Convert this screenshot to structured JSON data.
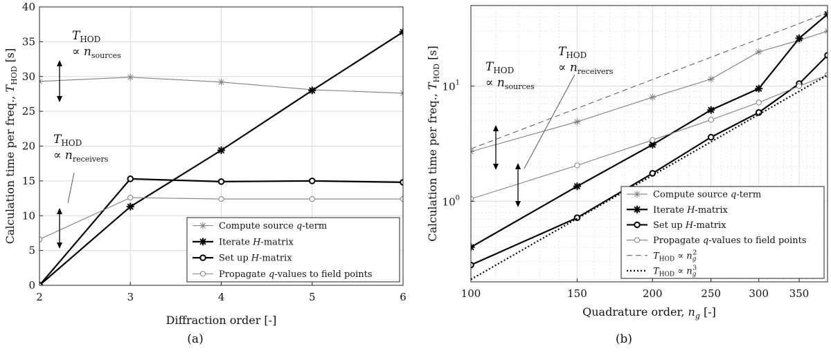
{
  "figure": {
    "colors": {
      "axis": "#222222",
      "grid": "#d9d9d9",
      "gray_series": "#7f7f7f",
      "black_series": "#000000"
    }
  },
  "chart_data": [
    {
      "type": "line",
      "caption": "(a)",
      "xlabel": "Diffraction order [-]",
      "ylabel": "Calculation time per freq.,",
      "ylabel_math": {
        "base": "T",
        "sub": "HOD",
        "suffix": " [s]"
      },
      "xlim": [
        2,
        6
      ],
      "ylim": [
        0,
        40
      ],
      "xticks": [
        2,
        3,
        4,
        5,
        6
      ],
      "yticks": [
        0,
        5,
        10,
        15,
        20,
        25,
        30,
        35,
        40
      ],
      "yscale": "linear",
      "grid": true,
      "legend_position": "bottom-right",
      "series": [
        {
          "name": "Compute source q-term",
          "legend": {
            "pre": "Compute source ",
            "italic": "q",
            "post": "-term"
          },
          "color": "#7f7f7f",
          "width": 1.1,
          "marker": "asterisk",
          "x": [
            2,
            3,
            4,
            5,
            6
          ],
          "y": [
            29.3,
            29.9,
            29.2,
            28.1,
            27.6
          ]
        },
        {
          "name": "Iterate H-matrix",
          "legend": {
            "pre": "Iterate ",
            "italic": "H",
            "post": "-matrix"
          },
          "color": "#000000",
          "width": 2.2,
          "marker": "asterisk",
          "x": [
            2,
            3,
            4,
            5,
            6
          ],
          "y": [
            0,
            11.3,
            19.4,
            28.0,
            36.4
          ]
        },
        {
          "name": "Set up H-matrix",
          "legend": {
            "pre": "Set up ",
            "italic": "H",
            "post": "-matrix"
          },
          "color": "#000000",
          "width": 2.2,
          "marker": "circle",
          "x": [
            2,
            3,
            4,
            5,
            6
          ],
          "y": [
            0,
            15.3,
            14.9,
            15.0,
            14.8
          ]
        },
        {
          "name": "Propagate q-values to field points",
          "legend": {
            "pre": "Propagate ",
            "italic": "q",
            "post": "-values to field points"
          },
          "color": "#7f7f7f",
          "width": 1.1,
          "marker": "circle",
          "x": [
            2,
            3,
            4,
            5,
            6
          ],
          "y": [
            6.6,
            12.6,
            12.4,
            12.4,
            12.4
          ]
        }
      ],
      "annotations": [
        {
          "base": "T",
          "sub": "HOD",
          "relation": "∝ n",
          "rel_sub": "sources"
        },
        {
          "base": "T",
          "sub": "HOD",
          "relation": "∝ n",
          "rel_sub": "receivers"
        }
      ]
    },
    {
      "type": "line",
      "caption": "(b)",
      "xlabel": "Quadrature order,",
      "xlabel_math": {
        "base": "n",
        "sub": "g",
        "suffix": " [-]"
      },
      "ylabel": "Calculation time per freq.,",
      "ylabel_math": {
        "base": "T",
        "sub": "HOD",
        "suffix": " [s]"
      },
      "xscale": "log",
      "yscale": "log",
      "xlim": [
        100,
        390
      ],
      "ylim": [
        0.2,
        50
      ],
      "xticks": [
        100,
        150,
        200,
        250,
        300,
        350
      ],
      "yticks": [
        1,
        10
      ],
      "ytick_labels": [
        {
          "base": "10",
          "exp": "0"
        },
        {
          "base": "10",
          "exp": "1"
        }
      ],
      "grid": true,
      "legend_position": "bottom-right",
      "series": [
        {
          "name": "Compute source q-term",
          "legend": {
            "pre": "Compute source ",
            "italic": "q",
            "post": "-term"
          },
          "color": "#7f7f7f",
          "width": 1.1,
          "marker": "asterisk",
          "dash": "",
          "x": [
            100,
            150,
            200,
            250,
            300,
            350,
            390
          ],
          "y": [
            2.7,
            4.9,
            8.0,
            11.5,
            19.8,
            25.0,
            30.0
          ]
        },
        {
          "name": "Iterate H-matrix",
          "legend": {
            "pre": "Iterate ",
            "italic": "H",
            "post": "-matrix"
          },
          "color": "#000000",
          "width": 2.2,
          "marker": "asterisk",
          "dash": "",
          "x": [
            100,
            150,
            200,
            250,
            300,
            350,
            390
          ],
          "y": [
            0.4,
            1.35,
            3.1,
            6.2,
            9.5,
            26.0,
            42.0
          ]
        },
        {
          "name": "Set up H-matrix",
          "legend": {
            "pre": "Set up ",
            "italic": "H",
            "post": "-matrix"
          },
          "color": "#000000",
          "width": 2.2,
          "marker": "circle",
          "dash": "",
          "x": [
            100,
            150,
            200,
            250,
            300,
            350,
            390
          ],
          "y": [
            0.28,
            0.72,
            1.75,
            3.6,
            5.9,
            10.5,
            18.5
          ]
        },
        {
          "name": "Propagate q-values to field points",
          "legend": {
            "pre": "Propagate ",
            "italic": "q",
            "post": "-values to field points"
          },
          "color": "#7f7f7f",
          "width": 1.1,
          "marker": "circle",
          "dash": "",
          "x": [
            100,
            150,
            200,
            250,
            300,
            350,
            390
          ],
          "y": [
            1.05,
            2.05,
            3.4,
            5.1,
            7.2,
            10.0,
            12.5
          ]
        },
        {
          "name": "T_HOD ∝ n_g^2",
          "legend": {
            "base": "T",
            "sub": "HOD",
            "rel": " ∝ n",
            "rsub": "g",
            "exp": "2"
          },
          "color": "#555555",
          "width": 1.0,
          "marker": "none",
          "dash": "8 5",
          "x": [
            100,
            390
          ],
          "y": [
            2.85,
            43.3
          ]
        },
        {
          "name": "T_HOD ∝ n_g^3",
          "legend": {
            "base": "T",
            "sub": "HOD",
            "rel": " ∝ n",
            "rsub": "g",
            "exp": "3"
          },
          "color": "#000000",
          "width": 2.2,
          "marker": "none",
          "dash": "2 3",
          "x": [
            100,
            390
          ],
          "y": [
            0.21,
            12.45
          ]
        }
      ],
      "annotations": [
        {
          "base": "T",
          "sub": "HOD",
          "relation": "∝ n",
          "rel_sub": "sources"
        },
        {
          "base": "T",
          "sub": "HOD",
          "relation": "∝ n",
          "rel_sub": "receivers"
        }
      ]
    }
  ]
}
